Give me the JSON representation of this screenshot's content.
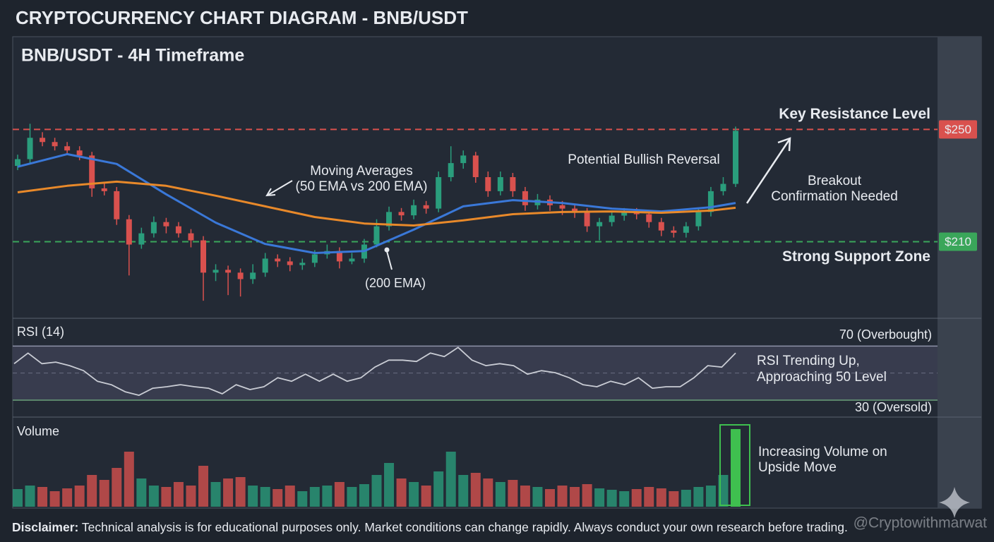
{
  "title": "CRYPTOCURRENCY CHART DIAGRAM - BNB/USDT",
  "disclaimer": {
    "label": "Disclaimer:",
    "text": "Technical analysis is for educational purposes only. Market conditions can change rapidly. Always conduct your own research before trading."
  },
  "watermark": "@Cryptowithmarwat",
  "chart_data": [
    {
      "type": "candlestick",
      "title": "BNB/USDT - 4H Timeframe",
      "up_color": "#2a9d7c",
      "down_color": "#d9514e",
      "open": [
        237,
        239.4,
        247,
        245.5,
        244,
        242.5,
        240.7,
        229,
        228,
        218,
        209,
        213,
        217,
        215.5,
        213,
        210.5,
        199,
        200,
        199,
        196.7,
        199,
        204,
        203,
        201.7,
        202.5,
        205.5,
        206.7,
        203,
        204,
        209,
        215.5,
        220.6,
        219.4,
        223,
        221.8,
        233,
        238,
        240.7,
        233,
        228,
        233,
        228,
        223,
        225,
        223,
        221.8,
        220.6,
        215.5,
        217,
        219.3,
        220.6,
        219.8,
        217,
        214,
        213.2,
        215.5,
        220.6,
        228,
        230.6
      ],
      "high": [
        241,
        252,
        249,
        247,
        245.5,
        244,
        242,
        231,
        229.5,
        219.5,
        215,
        219,
        218.5,
        217,
        214.5,
        212,
        202,
        201.5,
        200.5,
        202,
        206,
        205.5,
        204.5,
        204,
        207,
        209,
        208,
        206,
        211,
        218,
        222.5,
        222,
        225,
        224.5,
        235,
        244,
        242.5,
        242,
        235,
        235,
        234.5,
        229.5,
        227,
        226.5,
        224.5,
        223,
        222,
        218.5,
        221,
        222,
        222,
        221,
        218.5,
        215.5,
        217,
        222,
        229.5,
        233,
        251
      ],
      "low": [
        235.5,
        238,
        244,
        242.5,
        241,
        239,
        226,
        226.5,
        216,
        198,
        207.5,
        211.5,
        213,
        211.5,
        208,
        189,
        196,
        191,
        190.5,
        195,
        197.5,
        201,
        199.5,
        200,
        201,
        204,
        200.5,
        202,
        202.5,
        208,
        214,
        217.5,
        218,
        220,
        220.5,
        231.5,
        236,
        231,
        226,
        226.5,
        226,
        221,
        221.5,
        221,
        219.5,
        218.5,
        213.5,
        210.5,
        215.5,
        217.5,
        218,
        215,
        212,
        211.5,
        211.5,
        214,
        219,
        226.5,
        229.5
      ],
      "close": [
        239.4,
        247,
        245.5,
        244,
        242.5,
        240.7,
        229,
        228,
        218,
        209,
        213,
        217,
        215.5,
        213,
        210.5,
        199,
        200,
        199,
        196.7,
        199,
        204,
        203,
        201.7,
        202.5,
        205.5,
        206.7,
        203,
        204,
        209,
        215.5,
        220.6,
        219.4,
        223,
        221.8,
        233,
        238,
        240.7,
        233,
        228,
        233,
        228,
        223,
        225,
        223,
        221.8,
        220.6,
        215.5,
        217,
        219.3,
        220.6,
        219.8,
        217,
        214,
        213.2,
        215.5,
        220.6,
        228,
        230.6,
        249.5
      ],
      "ylim": [
        183,
        283
      ],
      "ema": [
        {
          "color": "#3a78d8",
          "x": [
            0,
            4,
            8,
            12,
            16,
            20,
            24,
            28,
            32,
            36,
            40,
            44,
            48,
            52,
            56,
            58
          ],
          "values": [
            236.7,
            241.2,
            237.7,
            226.9,
            216.8,
            209.2,
            206,
            206.7,
            214.3,
            222.6,
            224.8,
            223.8,
            221.8,
            220.8,
            222.3,
            223.8
          ]
        },
        {
          "color": "#e8892a",
          "x": [
            0,
            4,
            8,
            12,
            16,
            20,
            24,
            28,
            32,
            36,
            40,
            44,
            48,
            52,
            56,
            58
          ],
          "values": [
            227.6,
            229.9,
            231.4,
            229.9,
            226.4,
            222.6,
            218.8,
            216.5,
            215.8,
            217.6,
            219.8,
            220.6,
            220.8,
            220.3,
            221.1,
            222.1
          ]
        }
      ],
      "levels": [
        {
          "value": 250,
          "label": "$250",
          "text": "Key Resistance Level",
          "color": "#d9514e"
        },
        {
          "value": 210,
          "label": "$210",
          "text": "Strong Support Zone",
          "color": "#3aa65a"
        }
      ],
      "annotations": [
        "Moving Averages",
        "(50 EMA vs 200 EMA)",
        "(200 EMA)",
        "Potential Bullish Reversal",
        "Breakout",
        "Confirmation Needed"
      ]
    },
    {
      "type": "line",
      "title": "RSI (14)",
      "color": "#c9ccd4",
      "values": [
        57,
        64.8,
        57,
        58.1,
        55.5,
        51.8,
        44,
        41.4,
        36.2,
        33.6,
        38.8,
        39.9,
        41.4,
        39.9,
        38.8,
        34.7,
        41.4,
        37.8,
        39.9,
        46.6,
        44,
        49.2,
        44,
        49.2,
        44,
        46.6,
        54.4,
        59.6,
        59.6,
        58.6,
        64.8,
        62.2,
        69,
        59.6,
        55.5,
        57,
        55.5,
        49.2,
        51.8,
        50.3,
        46.6,
        41.4,
        39.9,
        44,
        41.4,
        46.6,
        38.8,
        39.9,
        39.9,
        46.6,
        55.5,
        54.4,
        64.8
      ],
      "ylim": [
        18,
        90
      ],
      "midline": 50,
      "levels": [
        {
          "value": 70,
          "label": "70 (Overbought)"
        },
        {
          "value": 30,
          "label": "30 (Oversold)"
        }
      ],
      "annotations": [
        "RSI Trending Up,",
        "Approaching 50 Level"
      ]
    },
    {
      "type": "bar",
      "title": "Volume",
      "highlight_color": "#3fbf4f",
      "values": [
        25,
        30,
        28,
        22,
        26,
        30,
        45,
        38,
        55,
        78,
        40,
        30,
        28,
        35,
        30,
        58,
        35,
        40,
        42,
        30,
        28,
        25,
        30,
        22,
        28,
        30,
        35,
        28,
        32,
        45,
        62,
        40,
        35,
        30,
        50,
        78,
        45,
        48,
        40,
        35,
        38,
        30,
        28,
        25,
        30,
        28,
        32,
        26,
        24,
        22,
        25,
        28,
        26,
        22,
        24,
        28,
        30,
        45,
        110
      ],
      "ylim": [
        0,
        120
      ],
      "annotations": [
        "Increasing Volume on",
        "Upside Move"
      ]
    }
  ]
}
